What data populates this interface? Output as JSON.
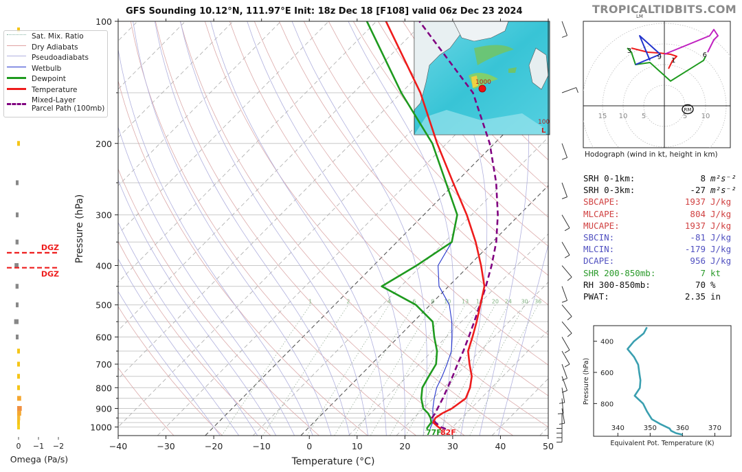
{
  "header": {
    "title": "GFS Sounding 10.12°N, 111.97°E Init: 18z Dec 18 [F108] valid 06z Dec 23 2024",
    "brand": "TROPICALTIDBITS.COM"
  },
  "colors": {
    "temperature": "#ee1c1c",
    "dewpoint": "#1e9a1e",
    "wetbulb": "#2233cc",
    "parcel": "#800080",
    "dry_adiabat": "#d9a0a0",
    "pseudoadiabat": "#a0a0d9",
    "mixing_ratio": "#80b080",
    "isotherm": "#888888",
    "theta_e": "#3a9fb0",
    "dgz": "#ee1c1c",
    "omega_up": "#f5c518",
    "omega_down": "#888888",
    "cape_red": "#d04040",
    "cin_blue": "#5050c0",
    "shear_green": "#2a9a2a"
  },
  "legend": {
    "items": [
      {
        "label": "Sat. Mix. Ratio",
        "style": "dotted",
        "color": "#80b0a0"
      },
      {
        "label": "Dry Adiabats",
        "style": "solid-thin",
        "color": "#e0a0a0"
      },
      {
        "label": "Pseudoadiabats",
        "style": "solid-thin",
        "color": "#b0b0e0"
      },
      {
        "label": "Wetbulb",
        "style": "solid",
        "color": "#2233cc"
      },
      {
        "label": "Dewpoint",
        "style": "thick",
        "color": "#1e9a1e"
      },
      {
        "label": "Temperature",
        "style": "thick",
        "color": "#ee1c1c"
      },
      {
        "label": "Mixed-Layer\nParcel Path (100mb)",
        "style": "dashed",
        "color": "#800080"
      }
    ]
  },
  "stats": [
    {
      "label": "SRH 0-1km:",
      "value": "8",
      "unit": "m²s⁻²",
      "color": "#111111"
    },
    {
      "label": "SRH 0-3km:",
      "value": "-27",
      "unit": "m²s⁻²",
      "color": "#111111"
    },
    {
      "label": "SBCAPE:",
      "value": "1937",
      "unit": "J/kg",
      "color": "#d04040"
    },
    {
      "label": "MLCAPE:",
      "value": "804",
      "unit": "J/kg",
      "color": "#d04040"
    },
    {
      "label": "MUCAPE:",
      "value": "1937",
      "unit": "J/kg",
      "color": "#d04040"
    },
    {
      "label": "SBCIN:",
      "value": "-81",
      "unit": "J/kg",
      "color": "#5050c0"
    },
    {
      "label": "MLCIN:",
      "value": "-179",
      "unit": "J/kg",
      "color": "#5050c0"
    },
    {
      "label": "DCAPE:",
      "value": "956",
      "unit": "J/kg",
      "color": "#5050c0"
    },
    {
      "label": "SHR 200-850mb:",
      "value": "7",
      "unit": "kt",
      "color": "#2a9a2a"
    },
    {
      "label": "RH 300-850mb:",
      "value": "70",
      "unit": "%",
      "color": "#111111"
    },
    {
      "label": "PWAT:",
      "value": "2.35",
      "unit": "in",
      "color": "#111111"
    }
  ],
  "chart_data": [
    {
      "type": "line",
      "name": "skew-t",
      "title": "GFS Sounding 10.12°N, 111.97°E Init: 18z Dec 18 [F108] valid 06z Dec 23 2024",
      "xlabel": "Temperature (°C)",
      "ylabel": "Pressure (hPa)",
      "xlim": [
        -40,
        50
      ],
      "ylim": [
        1050,
        100
      ],
      "y_scale": "log",
      "skew": true,
      "x_ticks": [
        -40,
        -30,
        -20,
        -10,
        0,
        10,
        20,
        30,
        40,
        50
      ],
      "x_tick_labels": [
        "−40",
        "−30",
        "−20",
        "−10",
        "0",
        "10",
        "20",
        "30",
        "40",
        "50"
      ],
      "y_ticks": [
        100,
        200,
        300,
        400,
        500,
        600,
        700,
        800,
        900,
        1000
      ],
      "y_tick_labels": [
        "100",
        "200",
        "300",
        "400",
        "500",
        "600",
        "700",
        "800",
        "900",
        "1000"
      ],
      "mixing_ratio_labels": [
        "1",
        "2",
        "4",
        "6",
        "8",
        "10",
        "13",
        "16",
        "20",
        "24",
        "30",
        "36"
      ],
      "mixing_ratio_label_pressure": 500,
      "series": [
        {
          "name": "Temperature",
          "color": "#ee1c1c",
          "points": [
            [
              1012,
              28
            ],
            [
              1000,
              27
            ],
            [
              975,
              25
            ],
            [
              950,
              24.5
            ],
            [
              925,
              25
            ],
            [
              900,
              26
            ],
            [
              850,
              26.8
            ],
            [
              800,
              25.5
            ],
            [
              750,
              23.5
            ],
            [
              700,
              20.5
            ],
            [
              650,
              17.5
            ],
            [
              600,
              15.5
            ],
            [
              550,
              13.2
            ],
            [
              500,
              10.5
            ],
            [
              450,
              7.5
            ],
            [
              400,
              2.5
            ],
            [
              350,
              -3.5
            ],
            [
              300,
              -11
            ],
            [
              250,
              -20.5
            ],
            [
              200,
              -32
            ],
            [
              150,
              -46
            ],
            [
              100,
              -68
            ]
          ]
        },
        {
          "name": "Dewpoint",
          "color": "#1e9a1e",
          "points": [
            [
              1012,
              25
            ],
            [
              1000,
              24.8
            ],
            [
              975,
              24.6
            ],
            [
              950,
              23.5
            ],
            [
              925,
              22
            ],
            [
              900,
              20
            ],
            [
              850,
              17.5
            ],
            [
              800,
              15.5
            ],
            [
              750,
              14.5
            ],
            [
              700,
              13.5
            ],
            [
              650,
              11
            ],
            [
              600,
              7.5
            ],
            [
              550,
              4
            ],
            [
              500,
              -3
            ],
            [
              450,
              -14
            ],
            [
              400,
              -11
            ],
            [
              350,
              -8.5
            ],
            [
              300,
              -13
            ],
            [
              250,
              -22
            ],
            [
              200,
              -33
            ],
            [
              150,
              -50
            ],
            [
              100,
              -72
            ]
          ]
        },
        {
          "name": "Wetbulb",
          "color": "#2233cc",
          "points": [
            [
              1012,
              25.7
            ],
            [
              1000,
              25.4
            ],
            [
              975,
              24.9
            ],
            [
              950,
              24
            ],
            [
              925,
              23
            ],
            [
              900,
              22
            ],
            [
              850,
              20.2
            ],
            [
              800,
              18.5
            ],
            [
              750,
              17.3
            ],
            [
              700,
              15.8
            ],
            [
              650,
              14
            ],
            [
              600,
              11.2
            ],
            [
              550,
              8
            ],
            [
              500,
              4
            ],
            [
              450,
              -2
            ],
            [
              400,
              -6.5
            ],
            [
              350,
              -8.5
            ]
          ]
        },
        {
          "name": "Mixed-Layer Parcel Path (100mb)",
          "color": "#800080",
          "points": [
            [
              1012,
              29
            ],
            [
              1000,
              27.5
            ],
            [
              975,
              25.5
            ],
            [
              950,
              23.8
            ],
            [
              925,
              23.5
            ],
            [
              900,
              23
            ],
            [
              850,
              22
            ],
            [
              800,
              20.8
            ],
            [
              750,
              19.5
            ],
            [
              700,
              18
            ],
            [
              650,
              16.5
            ],
            [
              600,
              14.7
            ],
            [
              550,
              12.7
            ],
            [
              500,
              10.4
            ],
            [
              450,
              7.8
            ],
            [
              400,
              4.7
            ],
            [
              350,
              0.8
            ],
            [
              300,
              -4.5
            ],
            [
              250,
              -11.5
            ],
            [
              200,
              -21
            ],
            [
              150,
              -35
            ],
            [
              100,
              -61
            ]
          ]
        }
      ],
      "annotations": [
        {
          "text": "77F",
          "color": "#1e9a1e"
        },
        {
          "text": "82F",
          "color": "#ee1c1c"
        }
      ]
    },
    {
      "type": "bar",
      "name": "omega-profile",
      "xlabel": "Omega (Pa/s)",
      "xlim": [
        0.2,
        -2.2
      ],
      "x_ticks": [
        0,
        -1,
        -2
      ],
      "x_tick_labels": [
        "0",
        "−1",
        "−2"
      ],
      "bars": [
        {
          "p": 105,
          "omega": -0.1,
          "color": "#f5c518"
        },
        {
          "p": 200,
          "omega": -0.1,
          "color": "#f5c518"
        },
        {
          "p": 250,
          "omega": 0.08,
          "color": "#888888"
        },
        {
          "p": 300,
          "omega": 0.1,
          "color": "#888888"
        },
        {
          "p": 350,
          "omega": 0.15,
          "color": "#888888"
        },
        {
          "p": 400,
          "omega": 0.2,
          "color": "#888888"
        },
        {
          "p": 450,
          "omega": 0.15,
          "color": "#888888"
        },
        {
          "p": 500,
          "omega": 0.08,
          "color": "#888888"
        },
        {
          "p": 550,
          "omega": 0.22,
          "color": "#888888"
        },
        {
          "p": 600,
          "omega": 0.12,
          "color": "#888888"
        },
        {
          "p": 650,
          "omega": -0.05,
          "color": "#f5c518"
        },
        {
          "p": 700,
          "omega": -0.05,
          "color": "#f5c518"
        },
        {
          "p": 750,
          "omega": -0.1,
          "color": "#f5c518"
        },
        {
          "p": 800,
          "omega": -0.08,
          "color": "#f5c518"
        },
        {
          "p": 850,
          "omega": -0.2,
          "color": "#f5a830"
        },
        {
          "p": 900,
          "omega": -0.23,
          "color": "#f09040"
        },
        {
          "p": 925,
          "omega": -0.2,
          "color": "#f5a830"
        },
        {
          "p": 950,
          "omega": -0.15,
          "color": "#f5b830"
        },
        {
          "p": 975,
          "omega": -0.1,
          "color": "#f5c518"
        },
        {
          "p": 1000,
          "omega": -0.05,
          "color": "#f5d020"
        }
      ],
      "dgz_lines": [
        {
          "p": 372,
          "label": "DGZ"
        },
        {
          "p": 405,
          "label": "DGZ"
        }
      ]
    },
    {
      "type": "line",
      "name": "hodograph",
      "xlabel": "Hodograph (wind in kt, height in km)",
      "range_rings_kt": [
        5,
        10,
        15,
        20
      ],
      "ring_labels": [
        "15",
        "10",
        "5",
        "5",
        "10"
      ],
      "storm_motion_labels": [
        "LM",
        "RM"
      ],
      "rm": [
        5,
        0
      ],
      "lm": [
        -8,
        18
      ],
      "segments": [
        {
          "color": "#ee1c1c",
          "points": [
            [
              1,
              9
            ],
            [
              2,
              11
            ],
            [
              3,
              12
            ],
            [
              1.5,
              12.5
            ],
            [
              -1,
              12.8
            ],
            [
              -4,
              13
            ],
            [
              -8,
              14
            ]
          ]
        },
        {
          "color": "#1e9a1e",
          "points": [
            [
              -9,
              14
            ],
            [
              -8,
              13
            ],
            [
              -7,
              10
            ],
            [
              -3.5,
              10.5
            ],
            [
              1.5,
              6
            ],
            [
              9.5,
              11
            ],
            [
              10,
              12
            ]
          ]
        },
        {
          "color": "#2233cc",
          "points": [
            [
              -7,
              10
            ],
            [
              -1,
              12.5
            ],
            [
              -6,
              17
            ],
            [
              -3.5,
              11
            ]
          ]
        },
        {
          "color": "#c020c0",
          "points": [
            [
              0,
              12.5
            ],
            [
              11,
              17
            ],
            [
              12,
              18.5
            ],
            [
              13,
              17
            ],
            [
              12,
              16
            ],
            [
              10.5,
              13
            ]
          ]
        }
      ],
      "height_labels": [
        {
          "text": "1",
          "u": 2.2,
          "v": 11.2
        },
        {
          "text": "3",
          "u": -8.5,
          "v": 13.5
        },
        {
          "text": "6",
          "u": 9.8,
          "v": 12.5
        },
        {
          "text": "9",
          "u": -1.2,
          "v": 12
        }
      ]
    },
    {
      "type": "line",
      "name": "theta-e-profile",
      "xlabel": "Equivalent Pot. Temperature (K)",
      "ylabel": "Pressure (hPa)",
      "xlim": [
        332.5,
        375
      ],
      "ylim": [
        1010,
        300
      ],
      "x_ticks": [
        340,
        350,
        360,
        370
      ],
      "y_ticks": [
        400,
        600,
        800
      ],
      "series": [
        {
          "name": "Theta-E",
          "color": "#3a9fb0",
          "points": [
            [
              1000,
              360
            ],
            [
              990,
              358
            ],
            [
              975,
              356.5
            ],
            [
              960,
              356
            ],
            [
              930,
              353
            ],
            [
              900,
              350.5
            ],
            [
              850,
              349
            ],
            [
              800,
              347.8
            ],
            [
              750,
              345.2
            ],
            [
              700,
              346.8
            ],
            [
              650,
              347
            ],
            [
              600,
              346.6
            ],
            [
              550,
              346.3
            ],
            [
              500,
              345
            ],
            [
              450,
              343
            ],
            [
              400,
              345
            ],
            [
              350,
              348
            ],
            [
              310,
              349
            ]
          ]
        }
      ]
    }
  ],
  "inset_map": {
    "description": "forecast map inset",
    "labels": [
      "1000",
      "100",
      "L"
    ]
  }
}
